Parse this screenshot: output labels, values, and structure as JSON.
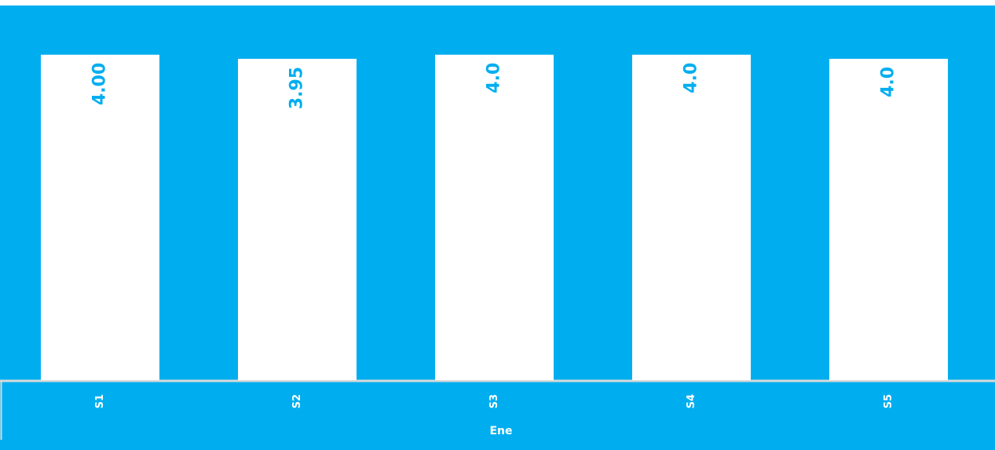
{
  "colors": {
    "background": "#00AEEF",
    "bar": "#FFFFFF",
    "label": "#00AEEF",
    "axis_text": "#FFFFFF",
    "baseline": "#D9D9D9"
  },
  "chart_data": {
    "type": "bar",
    "title": "",
    "xlabel": "Ene",
    "ylabel": "",
    "categories": [
      "S1",
      "S2",
      "S3",
      "S4",
      "S5"
    ],
    "values": [
      4.0,
      3.95,
      4.0,
      4.0,
      3.95
    ],
    "data_labels": [
      "4.00",
      "3.95",
      "4.0",
      "4.0",
      "4.0"
    ],
    "ylim": [
      0,
      4.2
    ],
    "grid": false,
    "legend": "none"
  }
}
